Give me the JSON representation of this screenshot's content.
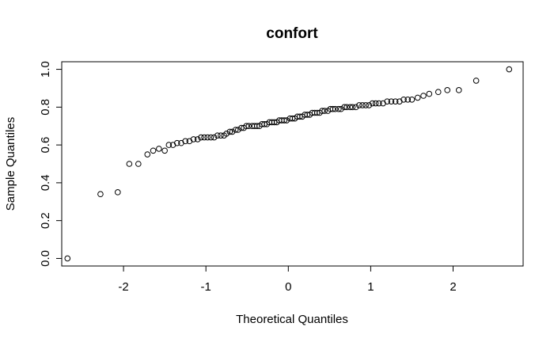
{
  "chart_data": {
    "type": "scatter",
    "title": "confort",
    "xlabel": "Theoretical Quantiles",
    "ylabel": "Sample Quantiles",
    "xlim": [
      -2.75,
      2.85
    ],
    "ylim": [
      -0.04,
      1.04
    ],
    "x_ticks": [
      -2,
      -1,
      0,
      1,
      2
    ],
    "y_ticks": [
      0.0,
      0.2,
      0.4,
      0.6,
      0.8,
      1.0
    ],
    "x_tick_labels": [
      "-2",
      "-1",
      "0",
      "1",
      "2"
    ],
    "y_tick_labels": [
      "0.0",
      "0.2",
      "0.4",
      "0.6",
      "0.8",
      "1.0"
    ],
    "grid": false,
    "marker": "open-circle",
    "point_color": "#000000",
    "points": [
      [
        -2.68,
        0.0
      ],
      [
        -2.28,
        0.34
      ],
      [
        -2.07,
        0.35
      ],
      [
        -1.93,
        0.5
      ],
      [
        -1.82,
        0.5
      ],
      [
        -1.71,
        0.55
      ],
      [
        -1.64,
        0.57
      ],
      [
        -1.57,
        0.58
      ],
      [
        -1.5,
        0.57
      ],
      [
        -1.45,
        0.6
      ],
      [
        -1.4,
        0.6
      ],
      [
        -1.35,
        0.61
      ],
      [
        -1.3,
        0.61
      ],
      [
        -1.25,
        0.62
      ],
      [
        -1.2,
        0.62
      ],
      [
        -1.15,
        0.63
      ],
      [
        -1.1,
        0.63
      ],
      [
        -1.06,
        0.64
      ],
      [
        -1.02,
        0.64
      ],
      [
        -0.98,
        0.64
      ],
      [
        -0.94,
        0.64
      ],
      [
        -0.9,
        0.64
      ],
      [
        -0.86,
        0.65
      ],
      [
        -0.82,
        0.65
      ],
      [
        -0.78,
        0.65
      ],
      [
        -0.75,
        0.66
      ],
      [
        -0.71,
        0.67
      ],
      [
        -0.68,
        0.67
      ],
      [
        -0.64,
        0.68
      ],
      [
        -0.61,
        0.68
      ],
      [
        -0.57,
        0.69
      ],
      [
        -0.54,
        0.69
      ],
      [
        -0.51,
        0.7
      ],
      [
        -0.48,
        0.7
      ],
      [
        -0.44,
        0.7
      ],
      [
        -0.41,
        0.7
      ],
      [
        -0.38,
        0.7
      ],
      [
        -0.35,
        0.7
      ],
      [
        -0.32,
        0.71
      ],
      [
        -0.29,
        0.71
      ],
      [
        -0.26,
        0.71
      ],
      [
        -0.23,
        0.72
      ],
      [
        -0.2,
        0.72
      ],
      [
        -0.17,
        0.72
      ],
      [
        -0.14,
        0.72
      ],
      [
        -0.11,
        0.73
      ],
      [
        -0.08,
        0.73
      ],
      [
        -0.05,
        0.73
      ],
      [
        -0.02,
        0.73
      ],
      [
        0.02,
        0.74
      ],
      [
        0.05,
        0.74
      ],
      [
        0.08,
        0.74
      ],
      [
        0.11,
        0.75
      ],
      [
        0.14,
        0.75
      ],
      [
        0.17,
        0.75
      ],
      [
        0.2,
        0.76
      ],
      [
        0.23,
        0.76
      ],
      [
        0.26,
        0.76
      ],
      [
        0.29,
        0.77
      ],
      [
        0.32,
        0.77
      ],
      [
        0.35,
        0.77
      ],
      [
        0.38,
        0.77
      ],
      [
        0.41,
        0.78
      ],
      [
        0.44,
        0.78
      ],
      [
        0.48,
        0.78
      ],
      [
        0.51,
        0.79
      ],
      [
        0.54,
        0.79
      ],
      [
        0.57,
        0.79
      ],
      [
        0.61,
        0.79
      ],
      [
        0.64,
        0.79
      ],
      [
        0.68,
        0.8
      ],
      [
        0.71,
        0.8
      ],
      [
        0.75,
        0.8
      ],
      [
        0.78,
        0.8
      ],
      [
        0.82,
        0.8
      ],
      [
        0.86,
        0.81
      ],
      [
        0.9,
        0.81
      ],
      [
        0.94,
        0.81
      ],
      [
        0.98,
        0.81
      ],
      [
        1.02,
        0.82
      ],
      [
        1.06,
        0.82
      ],
      [
        1.1,
        0.82
      ],
      [
        1.15,
        0.82
      ],
      [
        1.2,
        0.83
      ],
      [
        1.25,
        0.83
      ],
      [
        1.3,
        0.83
      ],
      [
        1.35,
        0.83
      ],
      [
        1.4,
        0.84
      ],
      [
        1.45,
        0.84
      ],
      [
        1.5,
        0.84
      ],
      [
        1.57,
        0.85
      ],
      [
        1.64,
        0.86
      ],
      [
        1.71,
        0.87
      ],
      [
        1.82,
        0.88
      ],
      [
        1.93,
        0.89
      ],
      [
        2.07,
        0.89
      ],
      [
        2.28,
        0.94
      ],
      [
        2.68,
        1.0
      ]
    ]
  }
}
